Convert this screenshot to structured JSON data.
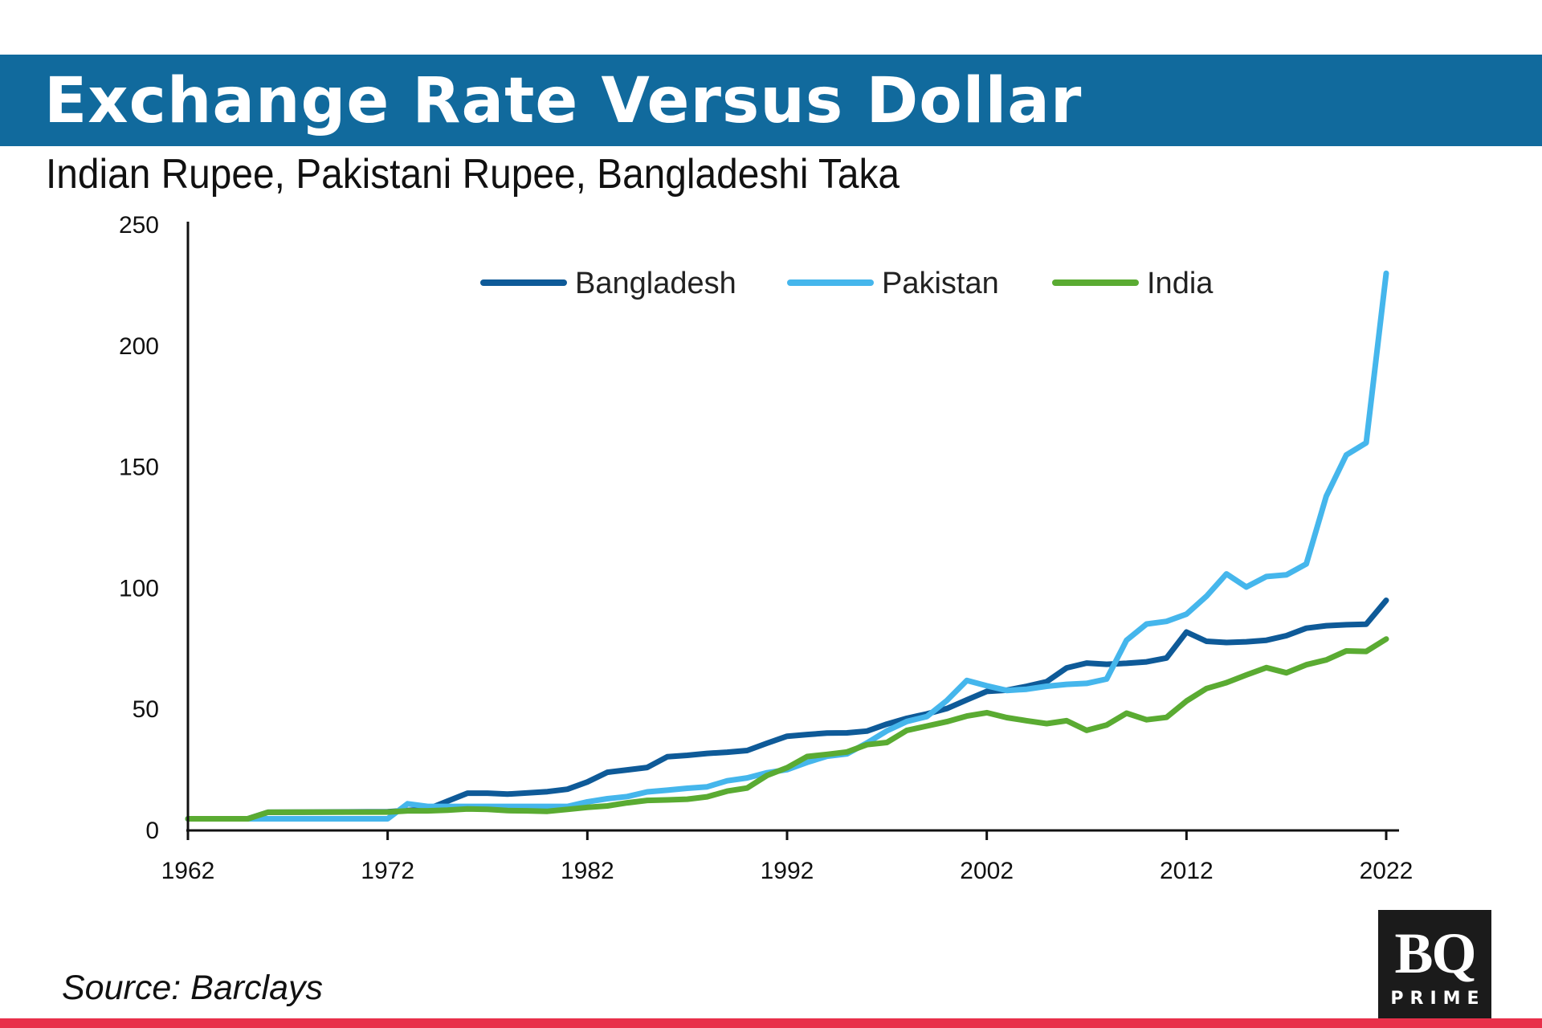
{
  "header": {
    "title": "Exchange Rate Versus Dollar",
    "subtitle": "Indian Rupee, Pakistani Rupee, Bangladeshi Taka"
  },
  "footer": {
    "source": "Source: Barclays",
    "logo_main": "BQ",
    "logo_sub": "PRIME"
  },
  "colors": {
    "header_band": "#116a9d",
    "bottom_bar": "#e8304a",
    "Bangladesh": "#0e5a98",
    "Pakistan": "#45b6ec",
    "India": "#5aab32"
  },
  "chart_data": {
    "type": "line",
    "title": "Exchange Rate Versus Dollar",
    "xlabel": "",
    "ylabel": "",
    "xlim": [
      1962,
      2022
    ],
    "ylim": [
      0,
      250
    ],
    "x_ticks": [
      1962,
      1972,
      1982,
      1992,
      2002,
      2012,
      2022
    ],
    "y_ticks": [
      0,
      50,
      100,
      150,
      200,
      250
    ],
    "grid": false,
    "legend_position": "top",
    "series": [
      {
        "name": "Bangladesh",
        "points": [
          [
            1962,
            4.8
          ],
          [
            1965,
            4.8
          ],
          [
            1966,
            7.5
          ],
          [
            1972,
            7.7
          ],
          [
            1974,
            8.8
          ],
          [
            1975,
            12.1
          ],
          [
            1976,
            15.4
          ],
          [
            1977,
            15.4
          ],
          [
            1978,
            15
          ],
          [
            1980,
            16
          ],
          [
            1981,
            17
          ],
          [
            1982,
            20
          ],
          [
            1983,
            24
          ],
          [
            1984,
            25
          ],
          [
            1985,
            26
          ],
          [
            1986,
            30.4
          ],
          [
            1987,
            31
          ],
          [
            1988,
            31.8
          ],
          [
            1989,
            32.3
          ],
          [
            1990,
            33
          ],
          [
            1991,
            36
          ],
          [
            1992,
            38.9
          ],
          [
            1993,
            39.6
          ],
          [
            1994,
            40.2
          ],
          [
            1995,
            40.3
          ],
          [
            1996,
            41
          ],
          [
            1997,
            43.9
          ],
          [
            1998,
            46.3
          ],
          [
            1999,
            48.1
          ],
          [
            2000,
            50.3
          ],
          [
            2001,
            53.9
          ],
          [
            2002,
            57.4
          ],
          [
            2003,
            57.9
          ],
          [
            2004,
            59.5
          ],
          [
            2005,
            61.4
          ],
          [
            2006,
            67.1
          ],
          [
            2007,
            69.1
          ],
          [
            2008,
            68.6
          ],
          [
            2009,
            69
          ],
          [
            2010,
            69.6
          ],
          [
            2011,
            71.2
          ],
          [
            2012,
            81.9
          ],
          [
            2013,
            78.1
          ],
          [
            2014,
            77.6
          ],
          [
            2015,
            77.9
          ],
          [
            2016,
            78.5
          ],
          [
            2017,
            80.4
          ],
          [
            2018,
            83.5
          ],
          [
            2019,
            84.5
          ],
          [
            2020,
            84.9
          ],
          [
            2021,
            85.1
          ],
          [
            2022,
            95
          ]
        ]
      },
      {
        "name": "Pakistan",
        "points": [
          [
            1962,
            4.8
          ],
          [
            1972,
            4.8
          ],
          [
            1973,
            11
          ],
          [
            1974,
            9.9
          ],
          [
            1981,
            9.9
          ],
          [
            1982,
            11.8
          ],
          [
            1983,
            13.1
          ],
          [
            1984,
            14
          ],
          [
            1985,
            15.9
          ],
          [
            1986,
            16.6
          ],
          [
            1987,
            17.4
          ],
          [
            1988,
            18
          ],
          [
            1989,
            20.5
          ],
          [
            1990,
            21.7
          ],
          [
            1991,
            23.8
          ],
          [
            1992,
            25.1
          ],
          [
            1993,
            28.1
          ],
          [
            1994,
            30.6
          ],
          [
            1995,
            31.6
          ],
          [
            1996,
            36.1
          ],
          [
            1997,
            41.1
          ],
          [
            1998,
            45
          ],
          [
            1999,
            47
          ],
          [
            2000,
            53.6
          ],
          [
            2001,
            61.9
          ],
          [
            2002,
            59.7
          ],
          [
            2003,
            57.8
          ],
          [
            2004,
            58.3
          ],
          [
            2005,
            59.5
          ],
          [
            2006,
            60.3
          ],
          [
            2007,
            60.7
          ],
          [
            2008,
            62.5
          ],
          [
            2009,
            78.5
          ],
          [
            2010,
            85.2
          ],
          [
            2011,
            86.3
          ],
          [
            2012,
            89.3
          ],
          [
            2013,
            96.7
          ],
          [
            2014,
            105.9
          ],
          [
            2015,
            100.5
          ],
          [
            2016,
            104.8
          ],
          [
            2017,
            105.5
          ],
          [
            2018,
            110
          ],
          [
            2019,
            138
          ],
          [
            2020,
            155
          ],
          [
            2021,
            160
          ],
          [
            2022,
            230
          ]
        ]
      },
      {
        "name": "India",
        "points": [
          [
            1962,
            4.8
          ],
          [
            1965,
            4.8
          ],
          [
            1966,
            7.5
          ],
          [
            1972,
            7.6
          ],
          [
            1973,
            8.1
          ],
          [
            1974,
            8.1
          ],
          [
            1975,
            8.4
          ],
          [
            1976,
            8.9
          ],
          [
            1977,
            8.7
          ],
          [
            1978,
            8.2
          ],
          [
            1979,
            8.1
          ],
          [
            1980,
            7.9
          ],
          [
            1981,
            8.7
          ],
          [
            1982,
            9.5
          ],
          [
            1983,
            10.1
          ],
          [
            1984,
            11.4
          ],
          [
            1985,
            12.4
          ],
          [
            1986,
            12.6
          ],
          [
            1987,
            12.9
          ],
          [
            1988,
            13.9
          ],
          [
            1989,
            16.2
          ],
          [
            1990,
            17.5
          ],
          [
            1991,
            22.7
          ],
          [
            1992,
            25.9
          ],
          [
            1993,
            30.5
          ],
          [
            1994,
            31.4
          ],
          [
            1995,
            32.4
          ],
          [
            1996,
            35.4
          ],
          [
            1997,
            36.3
          ],
          [
            1998,
            41.3
          ],
          [
            1999,
            43.1
          ],
          [
            2000,
            44.9
          ],
          [
            2001,
            47.2
          ],
          [
            2002,
            48.6
          ],
          [
            2003,
            46.6
          ],
          [
            2004,
            45.3
          ],
          [
            2005,
            44.1
          ],
          [
            2006,
            45.3
          ],
          [
            2007,
            41.3
          ],
          [
            2008,
            43.5
          ],
          [
            2009,
            48.4
          ],
          [
            2010,
            45.7
          ],
          [
            2011,
            46.7
          ],
          [
            2012,
            53.4
          ],
          [
            2013,
            58.6
          ],
          [
            2014,
            61
          ],
          [
            2015,
            64.2
          ],
          [
            2016,
            67.2
          ],
          [
            2017,
            65.1
          ],
          [
            2018,
            68.4
          ],
          [
            2019,
            70.4
          ],
          [
            2020,
            74.1
          ],
          [
            2021,
            73.9
          ],
          [
            2022,
            79
          ]
        ]
      }
    ]
  }
}
